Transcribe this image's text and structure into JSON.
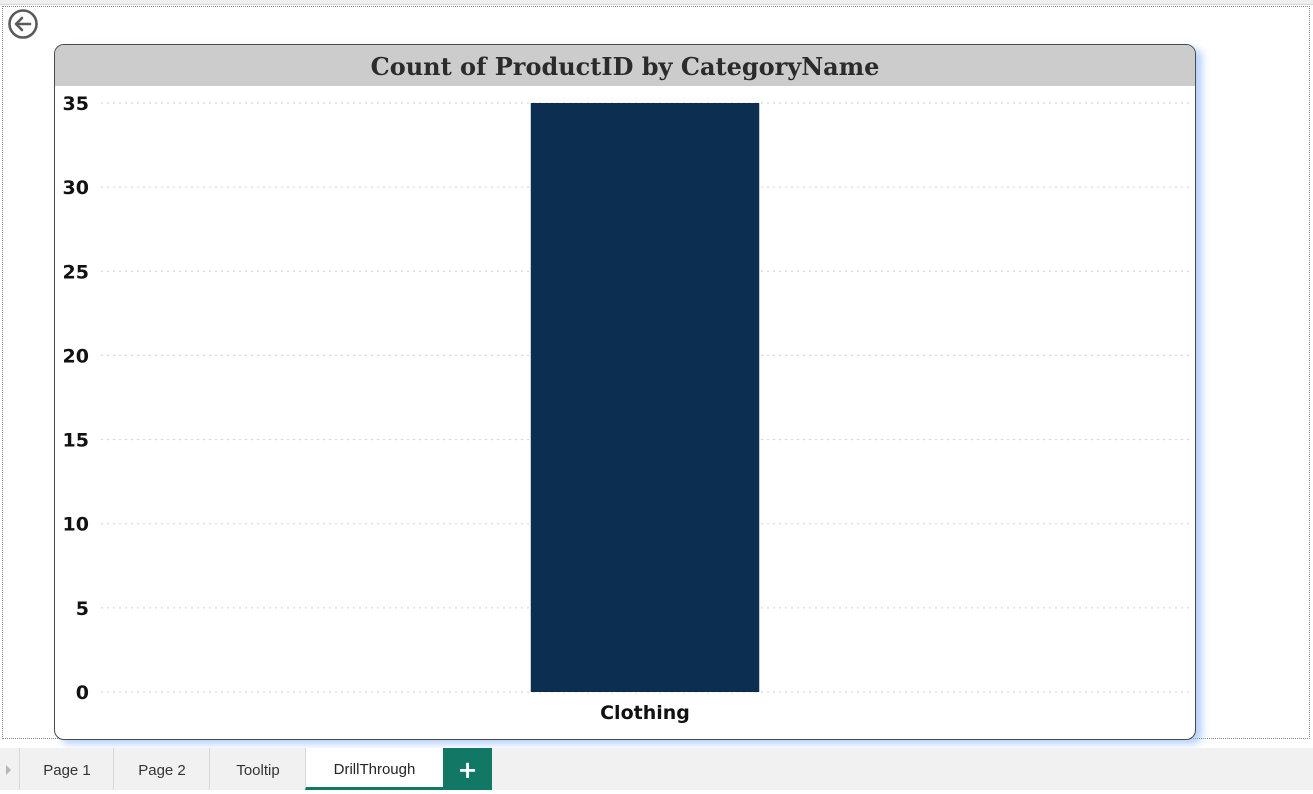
{
  "report": {
    "back_icon": "arrow-left-circle-icon"
  },
  "visual": {
    "title": "Count of ProductID by CategoryName",
    "bar_color": "#0b2e51",
    "title_bg": "#cccccc"
  },
  "chart_data": {
    "type": "bar",
    "title": "Count of ProductID by CategoryName",
    "categories": [
      "Clothing"
    ],
    "values": [
      35
    ],
    "xlabel": "",
    "ylabel": "",
    "ylim": [
      0,
      35
    ],
    "yticks": [
      0,
      5,
      10,
      15,
      20,
      25,
      30,
      35
    ],
    "grid": true,
    "legend": "none"
  },
  "tabs": {
    "items": [
      {
        "label": "Page 1",
        "active": false
      },
      {
        "label": "Page 2",
        "active": false
      },
      {
        "label": "Tooltip",
        "active": false
      },
      {
        "label": "DrillThrough",
        "active": true
      }
    ],
    "add_label": "+",
    "accent": "#117865"
  }
}
